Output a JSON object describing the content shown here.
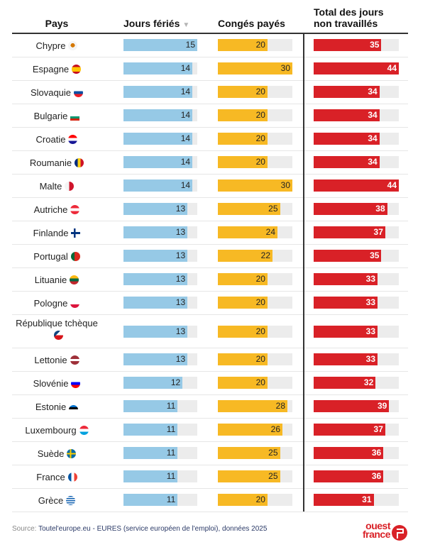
{
  "header": {
    "pays": "Pays",
    "jours_feries": "Jours fériés",
    "sort_icon": "▼",
    "conges_payes": "Congés payés",
    "total_line1": "Total des jours",
    "total_line2": "non travaillés"
  },
  "colors": {
    "jours_feries": "#96c9e6",
    "conges_payes": "#f7b924",
    "total": "#d92127",
    "track": "#ececec"
  },
  "chart_data": {
    "type": "table",
    "title": "",
    "columns": [
      "Pays",
      "Jours fériés",
      "Congés payés",
      "Total des jours non travaillés"
    ],
    "scale_max": {
      "jours_feries": 15,
      "conges_payes": 30,
      "total": 44
    },
    "sorted_by": "Jours fériés (descending)",
    "rows": [
      {
        "country": "Chypre",
        "flag": "cyprus-flag-icon",
        "jours_feries": 15,
        "conges_payes": 20,
        "total": 35
      },
      {
        "country": "Espagne",
        "flag": "spain-flag-icon",
        "jours_feries": 14,
        "conges_payes": 30,
        "total": 44
      },
      {
        "country": "Slovaquie",
        "flag": "slovakia-flag-icon",
        "jours_feries": 14,
        "conges_payes": 20,
        "total": 34
      },
      {
        "country": "Bulgarie",
        "flag": "bulgaria-flag-icon",
        "jours_feries": 14,
        "conges_payes": 20,
        "total": 34
      },
      {
        "country": "Croatie",
        "flag": "croatia-flag-icon",
        "jours_feries": 14,
        "conges_payes": 20,
        "total": 34
      },
      {
        "country": "Roumanie",
        "flag": "romania-flag-icon",
        "jours_feries": 14,
        "conges_payes": 20,
        "total": 34
      },
      {
        "country": "Malte",
        "flag": "malta-flag-icon",
        "jours_feries": 14,
        "conges_payes": 30,
        "total": 44
      },
      {
        "country": "Autriche",
        "flag": "austria-flag-icon",
        "jours_feries": 13,
        "conges_payes": 25,
        "total": 38
      },
      {
        "country": "Finlande",
        "flag": "finland-flag-icon",
        "jours_feries": 13,
        "conges_payes": 24,
        "total": 37
      },
      {
        "country": "Portugal",
        "flag": "portugal-flag-icon",
        "jours_feries": 13,
        "conges_payes": 22,
        "total": 35
      },
      {
        "country": "Lituanie",
        "flag": "lithuania-flag-icon",
        "jours_feries": 13,
        "conges_payes": 20,
        "total": 33
      },
      {
        "country": "Pologne",
        "flag": "poland-flag-icon",
        "jours_feries": 13,
        "conges_payes": 20,
        "total": 33
      },
      {
        "country": "République tchèque",
        "flag": "czechia-flag-icon",
        "jours_feries": 13,
        "conges_payes": 20,
        "total": 33
      },
      {
        "country": "Lettonie",
        "flag": "latvia-flag-icon",
        "jours_feries": 13,
        "conges_payes": 20,
        "total": 33
      },
      {
        "country": "Slovénie",
        "flag": "slovenia-flag-icon",
        "jours_feries": 12,
        "conges_payes": 20,
        "total": 32
      },
      {
        "country": "Estonie",
        "flag": "estonia-flag-icon",
        "jours_feries": 11,
        "conges_payes": 28,
        "total": 39
      },
      {
        "country": "Luxembourg",
        "flag": "luxembourg-flag-icon",
        "jours_feries": 11,
        "conges_payes": 26,
        "total": 37
      },
      {
        "country": "Suède",
        "flag": "sweden-flag-icon",
        "jours_feries": 11,
        "conges_payes": 25,
        "total": 36
      },
      {
        "country": "France",
        "flag": "france-flag-icon",
        "jours_feries": 11,
        "conges_payes": 25,
        "total": 36
      },
      {
        "country": "Grèce",
        "flag": "greece-flag-icon",
        "jours_feries": 11,
        "conges_payes": 20,
        "total": 31
      }
    ]
  },
  "footer": {
    "source_label": "Source:",
    "source_text": "Toutel'europe.eu - EURES (service européen de l'emploi), données 2025",
    "logo_line1": "ouest",
    "logo_line2": "france"
  }
}
